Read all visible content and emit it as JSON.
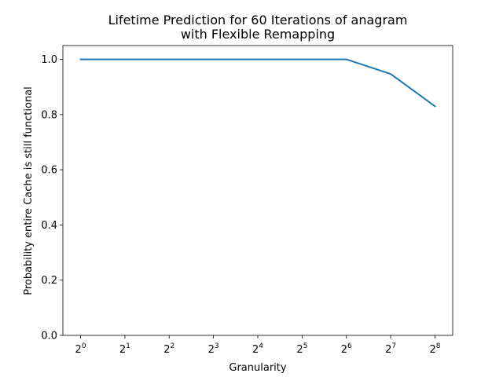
{
  "chart_data": {
    "type": "line",
    "title_lines": [
      "Lifetime Prediction for 60 Iterations of anagram",
      "with Flexible Remapping"
    ],
    "xlabel": "Granularity",
    "ylabel": "Probability entire Cache is still functional",
    "x_scale": "log2",
    "x": [
      1,
      2,
      4,
      8,
      16,
      32,
      64,
      128,
      256
    ],
    "x_tick_labels": [
      {
        "base": "2",
        "exp": "0"
      },
      {
        "base": "2",
        "exp": "1"
      },
      {
        "base": "2",
        "exp": "2"
      },
      {
        "base": "2",
        "exp": "3"
      },
      {
        "base": "2",
        "exp": "4"
      },
      {
        "base": "2",
        "exp": "5"
      },
      {
        "base": "2",
        "exp": "6"
      },
      {
        "base": "2",
        "exp": "7"
      },
      {
        "base": "2",
        "exp": "8"
      }
    ],
    "ylim": [
      0,
      1.05
    ],
    "y_ticks": [
      0.0,
      0.2,
      0.4,
      0.6,
      0.8,
      1.0
    ],
    "y_tick_labels": [
      "0.0",
      "0.2",
      "0.4",
      "0.6",
      "0.8",
      "1.0"
    ],
    "series": [
      {
        "values": [
          1.0,
          1.0,
          1.0,
          1.0,
          1.0,
          1.0,
          1.0,
          0.947,
          0.83
        ],
        "color": "#1f77b4"
      }
    ],
    "grid": false,
    "legend": "none"
  }
}
